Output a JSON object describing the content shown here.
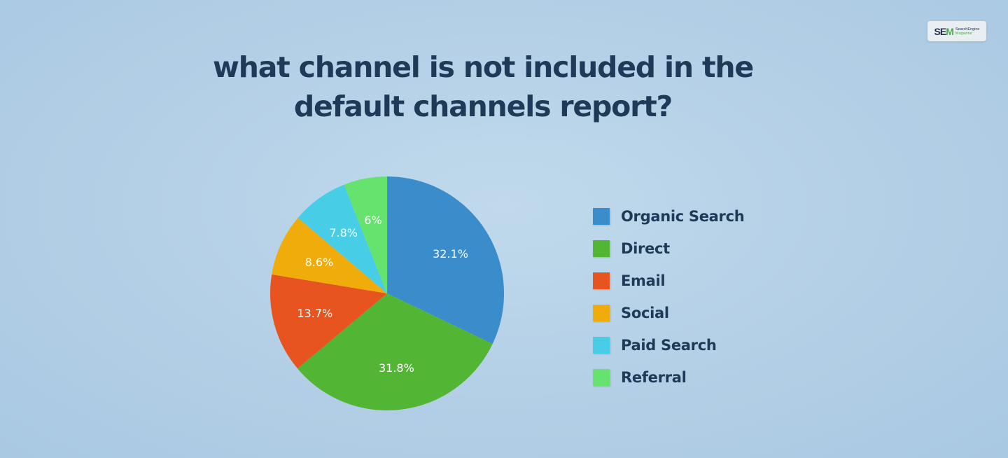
{
  "logo": {
    "main_a": "SE",
    "main_b": "M",
    "sub_1": "SearchEngine",
    "sub_2": "Magazine"
  },
  "chart_data": {
    "type": "pie",
    "title": "what channel is not included in the default channels report?",
    "categories": [
      "Organic Search",
      "Direct",
      "Email",
      "Social",
      "Paid Search",
      "Referral"
    ],
    "values": [
      32.1,
      31.8,
      13.7,
      8.6,
      7.8,
      6
    ],
    "value_labels": [
      "32.1%",
      "31.8%",
      "13.7%",
      "8.6%",
      "7.8%",
      "6%"
    ],
    "colors": [
      "#3a8ccb",
      "#52b534",
      "#e8541f",
      "#efac0a",
      "#48cde6",
      "#66e36f"
    ],
    "legend_placement": "right"
  }
}
